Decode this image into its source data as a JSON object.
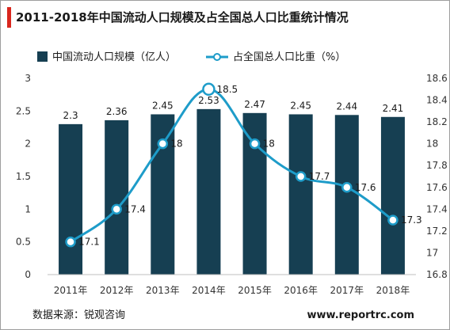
{
  "title": "2011-2018年中国流动人口规模及占全国总人口比重统计情况",
  "source": "数据来源：锐观咨询",
  "website": "www.reportrc.com",
  "colors": {
    "bar": "#163f52",
    "line": "#1e9cc9",
    "accent": "#d9271e"
  },
  "chart_data": {
    "type": "bar",
    "categories": [
      "2011年",
      "2012年",
      "2013年",
      "2014年",
      "2015年",
      "2016年",
      "2017年",
      "2018年"
    ],
    "series": [
      {
        "name": "中国流动人口规模（亿人）",
        "type": "bar",
        "axis": "left",
        "values": [
          2.3,
          2.36,
          2.45,
          2.53,
          2.47,
          2.45,
          2.44,
          2.41
        ]
      },
      {
        "name": "占全国总人口比重（%）",
        "type": "line",
        "axis": "right",
        "values": [
          17.1,
          17.4,
          18,
          18.5,
          18,
          17.7,
          17.6,
          17.3
        ]
      }
    ],
    "left_axis": {
      "ylim": [
        0,
        3
      ],
      "ticks": [
        "0",
        "0.5",
        "1",
        "1.5",
        "2",
        "2.5",
        "3"
      ]
    },
    "right_axis": {
      "ylim": [
        16.8,
        18.6
      ],
      "ticks": [
        "16.8",
        "17",
        "17.2",
        "17.4",
        "17.6",
        "17.8",
        "18",
        "18.2",
        "18.4",
        "18.6"
      ]
    },
    "legend_position": "top",
    "grid": false
  }
}
